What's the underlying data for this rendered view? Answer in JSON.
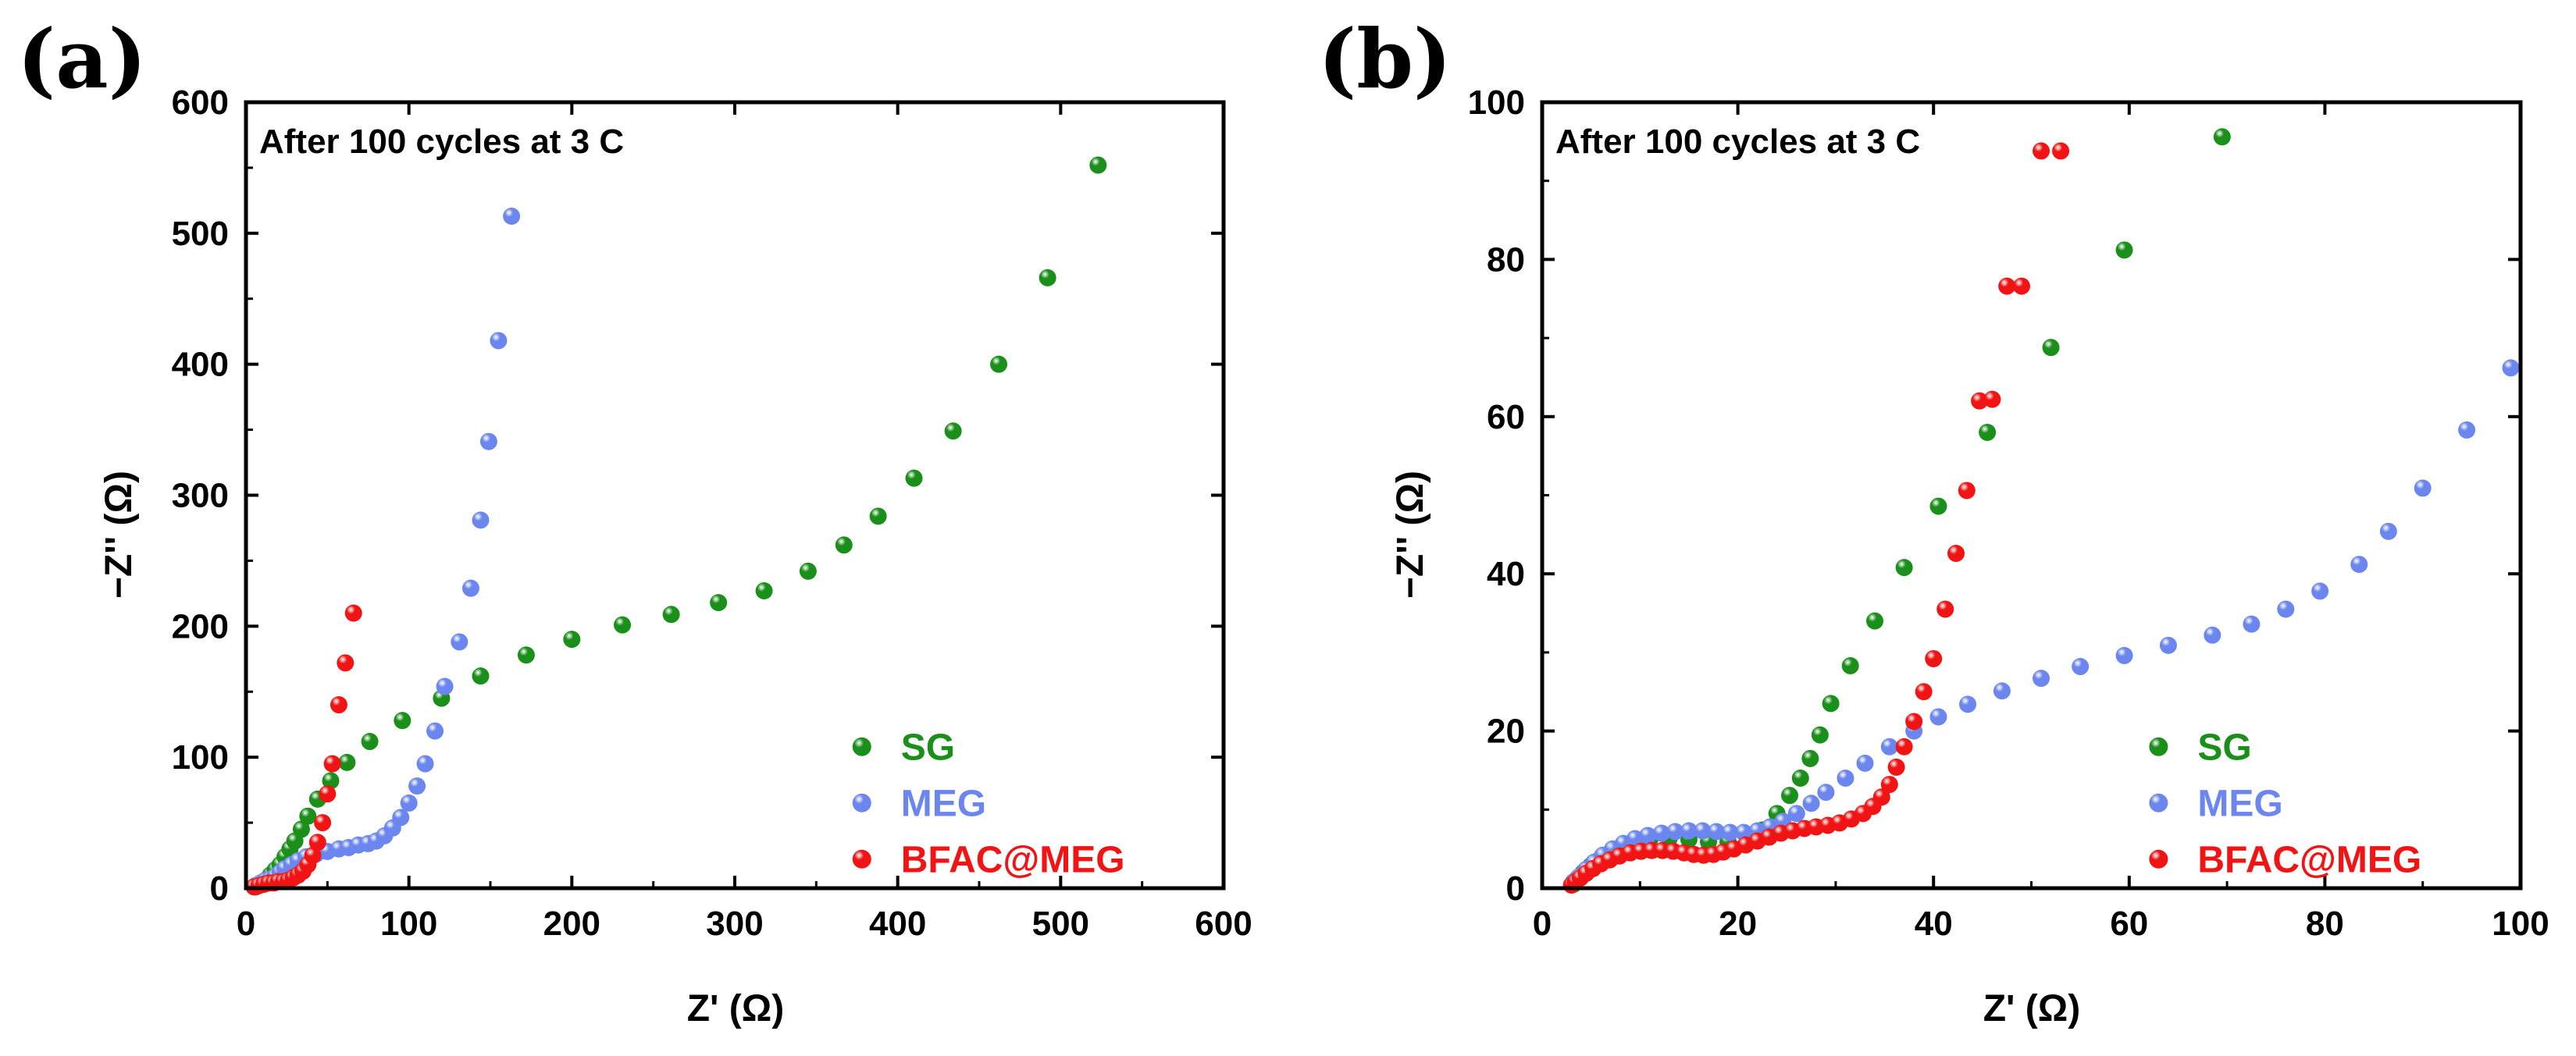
{
  "chart_data": [
    {
      "type": "scatter",
      "panel_label": "(a)",
      "annotation": "After 100 cycles at 3 C",
      "xlabel": "Z' (Ω)",
      "ylabel": "−Z'' (Ω)",
      "xlim": [
        0,
        600
      ],
      "ylim": [
        0,
        600
      ],
      "xticks": [
        "0",
        "100",
        "200",
        "300",
        "400",
        "500",
        "600"
      ],
      "yticks": [
        "0",
        "100",
        "200",
        "300",
        "400",
        "500",
        "600"
      ],
      "legend_position": "bottom-right",
      "series": [
        {
          "name": "SG",
          "color": "#1a8f1a",
          "x": [
            6,
            9,
            12,
            15,
            18,
            21,
            24,
            27,
            30,
            34,
            38,
            44,
            52,
            62,
            76,
            96,
            120,
            144,
            172,
            200,
            231,
            261,
            290,
            318,
            345,
            367,
            388,
            410,
            434,
            462,
            492,
            523
          ],
          "y": [
            1,
            3,
            6,
            10,
            14,
            18,
            24,
            30,
            36,
            45,
            55,
            68,
            82,
            96,
            112,
            128,
            145,
            162,
            178,
            190,
            201,
            209,
            218,
            227,
            242,
            262,
            284,
            313,
            349,
            400,
            466,
            552
          ]
        },
        {
          "name": "MEG",
          "color": "#6b86ee",
          "x": [
            6,
            9,
            12,
            15,
            18,
            21,
            24,
            28,
            32,
            37,
            43,
            50,
            57,
            63,
            69,
            75,
            80,
            85,
            90,
            95,
            100,
            105,
            110,
            116,
            122,
            131,
            138,
            144,
            149,
            155,
            163
          ],
          "y": [
            2,
            4,
            6,
            7,
            9,
            12,
            15,
            18,
            21,
            24,
            26,
            28,
            30,
            31,
            33,
            34,
            36,
            40,
            46,
            54,
            65,
            78,
            95,
            120,
            154,
            188,
            229,
            281,
            341,
            418,
            513
          ]
        },
        {
          "name": "BFAC@MEG",
          "color": "#f01414",
          "x": [
            5,
            8,
            11,
            14,
            17,
            20,
            23,
            26,
            29,
            32,
            35,
            38,
            41,
            44,
            47,
            50,
            53,
            57,
            61,
            66
          ],
          "y": [
            1,
            2,
            3,
            4,
            4,
            5,
            5,
            6,
            8,
            10,
            13,
            18,
            25,
            35,
            50,
            72,
            95,
            140,
            172,
            210
          ]
        }
      ]
    },
    {
      "type": "scatter",
      "panel_label": "(b)",
      "annotation": "After 100 cycles at 3 C",
      "xlabel": "Z' (Ω)",
      "ylabel": "−Z'' (Ω)",
      "xlim": [
        0,
        100
      ],
      "ylim": [
        0,
        100
      ],
      "xticks": [
        "0",
        "20",
        "40",
        "60",
        "80",
        "100"
      ],
      "yticks": [
        "0",
        "20",
        "40",
        "60",
        "80",
        "100"
      ],
      "legend_position": "bottom-right",
      "series": [
        {
          "name": "SG",
          "color": "#1a8f1a",
          "x": [
            3.2,
            3.6,
            4.2,
            5.0,
            6.0,
            7.5,
            9.0,
            11.0,
            13.0,
            15.0,
            17.0,
            19.0,
            21.0,
            22.5,
            24.0,
            25.3,
            26.4,
            27.4,
            28.4,
            29.5,
            31.5,
            34.0,
            37.0,
            40.5,
            45.5,
            52.0,
            59.5,
            69.5
          ],
          "y": [
            0.5,
            1.2,
            2.0,
            2.9,
            3.8,
            4.8,
            5.6,
            6.2,
            6.4,
            6.2,
            5.9,
            5.9,
            6.3,
            7.4,
            9.5,
            11.8,
            14.0,
            16.5,
            19.5,
            23.5,
            28.3,
            34.0,
            40.8,
            48.6,
            58.0,
            68.8,
            81.2,
            95.6
          ]
        },
        {
          "name": "MEG",
          "color": "#6b86ee",
          "x": [
            3.2,
            3.8,
            4.5,
            5.3,
            6.2,
            7.2,
            8.3,
            9.5,
            10.8,
            12.2,
            13.6,
            15.0,
            16.4,
            17.8,
            19.2,
            20.6,
            22.0,
            23.3,
            24.6,
            26.0,
            27.5,
            29.0,
            31.0,
            33.0,
            35.5,
            38.0,
            40.5,
            43.5,
            47.0,
            51.0,
            55.0,
            59.5,
            64.0,
            68.5,
            72.5,
            76.0,
            79.5,
            83.5,
            86.5,
            90.0,
            94.5,
            99.0
          ],
          "y": [
            0.8,
            1.5,
            2.4,
            3.3,
            4.2,
            5.0,
            5.7,
            6.3,
            6.7,
            7.0,
            7.2,
            7.3,
            7.3,
            7.2,
            7.1,
            7.1,
            7.3,
            7.8,
            8.5,
            9.5,
            10.8,
            12.2,
            14.0,
            15.9,
            18.0,
            20.0,
            21.8,
            23.4,
            25.1,
            26.7,
            28.2,
            29.6,
            30.9,
            32.2,
            33.6,
            35.5,
            37.8,
            41.2,
            45.4,
            50.9,
            58.3,
            66.2
          ]
        },
        {
          "name": "BFAC@MEG",
          "color": "#f01414",
          "x": [
            3.0,
            3.4,
            3.9,
            4.5,
            5.2,
            6.0,
            6.9,
            7.9,
            9.0,
            10.1,
            11.2,
            12.3,
            13.4,
            14.5,
            15.5,
            16.5,
            17.5,
            18.5,
            19.6,
            20.8,
            22.0,
            23.2,
            24.4,
            25.6,
            26.8,
            28.0,
            29.2,
            30.4,
            31.6,
            32.8,
            33.8,
            34.7,
            35.5,
            36.2,
            37.0,
            38.0,
            39.0,
            40.0,
            41.2,
            42.3,
            43.4,
            44.7,
            46.0,
            47.5,
            49.0,
            51.0,
            53.0
          ],
          "y": [
            0.4,
            0.8,
            1.3,
            1.9,
            2.5,
            3.1,
            3.6,
            4.1,
            4.5,
            4.7,
            4.8,
            4.8,
            4.7,
            4.5,
            4.3,
            4.2,
            4.3,
            4.6,
            5.0,
            5.5,
            6.0,
            6.5,
            7.0,
            7.3,
            7.6,
            7.8,
            8.0,
            8.3,
            8.8,
            9.5,
            10.4,
            11.6,
            13.2,
            15.4,
            18.0,
            21.2,
            25.0,
            29.2,
            35.5,
            42.6,
            50.6,
            62.0,
            62.2,
            76.6,
            76.6,
            93.8,
            93.8
          ]
        }
      ]
    }
  ]
}
